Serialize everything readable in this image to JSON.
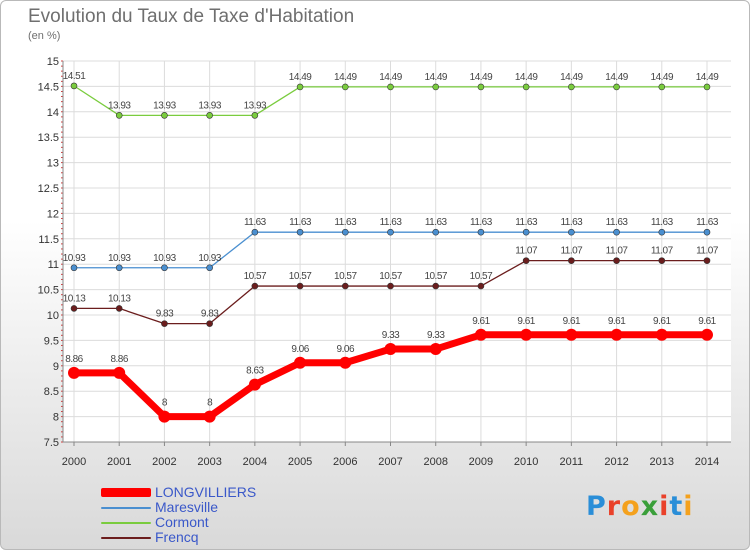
{
  "title": "Evolution du Taux de Taxe d'Habitation",
  "subtitle": "(en %)",
  "logo": {
    "text": "Proxiti",
    "colors": [
      "#2a8ed8",
      "#e9412a",
      "#f4a11d",
      "#3a9f3a",
      "#e9412a",
      "#2a8ed8",
      "#f4a11d"
    ]
  },
  "chart_data": {
    "type": "line",
    "title": "Evolution du Taux de Taxe d'Habitation",
    "subtitle": "(en %)",
    "xlabel": "",
    "ylabel": "",
    "ylim": [
      7.5,
      15
    ],
    "yticks": [
      "7.5",
      "8",
      "8.5",
      "9",
      "9.5",
      "10",
      "10.5",
      "11",
      "11.5",
      "12",
      "12.5",
      "13",
      "13.5",
      "14",
      "14.5",
      "15"
    ],
    "categories": [
      "2000",
      "2001",
      "2002",
      "2003",
      "2004",
      "2005",
      "2006",
      "2007",
      "2008",
      "2009",
      "2010",
      "2011",
      "2012",
      "2013",
      "2014"
    ],
    "grid": true,
    "legend_position": "bottom-left",
    "series": [
      {
        "name": "LONGVILLIERS",
        "color": "#ff0000",
        "thick": true,
        "values": [
          8.86,
          8.86,
          8,
          8,
          8.63,
          9.06,
          9.06,
          9.33,
          9.33,
          9.61,
          9.61,
          9.61,
          9.61,
          9.61,
          9.61
        ],
        "labels": [
          "8.86",
          "8.86",
          "8",
          "8",
          "8.63",
          "9.06",
          "9.06",
          "9.33",
          "9.33",
          "9.61",
          "9.61",
          "9.61",
          "9.61",
          "9.61",
          "9.61"
        ]
      },
      {
        "name": "Maresville",
        "color": "#4a8fd0",
        "thick": false,
        "values": [
          10.93,
          10.93,
          10.93,
          10.93,
          11.63,
          11.63,
          11.63,
          11.63,
          11.63,
          11.63,
          11.63,
          11.63,
          11.63,
          11.63,
          11.63
        ],
        "labels": [
          "10.93",
          "10.93",
          "10.93",
          "10.93",
          "11.63",
          "11.63",
          "11.63",
          "11.63",
          "11.63",
          "11.63",
          "11.63",
          "11.63",
          "11.63",
          "11.63",
          "11.63"
        ]
      },
      {
        "name": "Cormont",
        "color": "#7acc3e",
        "thick": false,
        "values": [
          14.51,
          13.93,
          13.93,
          13.93,
          13.93,
          14.49,
          14.49,
          14.49,
          14.49,
          14.49,
          14.49,
          14.49,
          14.49,
          14.49,
          14.49
        ],
        "labels": [
          "14.51",
          "13.93",
          "13.93",
          "13.93",
          "13.93",
          "14.49",
          "14.49",
          "14.49",
          "14.49",
          "14.49",
          "14.49",
          "14.49",
          "14.49",
          "14.49",
          "14.49"
        ]
      },
      {
        "name": "Frencq",
        "color": "#6b1d1d",
        "thick": false,
        "values": [
          10.13,
          10.13,
          9.83,
          9.83,
          10.57,
          10.57,
          10.57,
          10.57,
          10.57,
          10.57,
          11.07,
          11.07,
          11.07,
          11.07,
          11.07
        ],
        "labels": [
          "10.13",
          "10.13",
          "9.83",
          "9.83",
          "10.57",
          "10.57",
          "10.57",
          "10.57",
          "10.57",
          "10.57",
          "11.07",
          "11.07",
          "11.07",
          "11.07",
          "11.07"
        ]
      }
    ]
  }
}
